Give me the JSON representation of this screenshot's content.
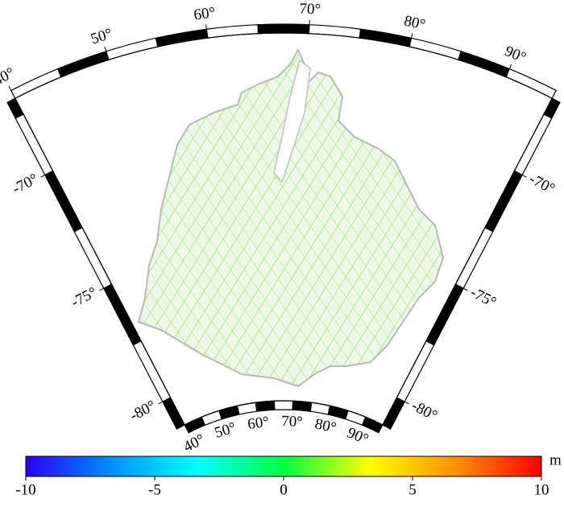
{
  "map": {
    "type": "map",
    "xlim": [
      40,
      95
    ],
    "ylim": [
      -81.2,
      -66.8
    ],
    "xticks": [
      {
        "value": 40,
        "label": "40°"
      },
      {
        "value": 50,
        "label": "50°"
      },
      {
        "value": 60,
        "label": "60°"
      },
      {
        "value": 70,
        "label": "70°"
      },
      {
        "value": 80,
        "label": "80°"
      },
      {
        "value": 90,
        "label": "90°"
      }
    ],
    "yticks": [
      {
        "value": -70,
        "label": "-70°"
      },
      {
        "value": -75,
        "label": "-75°"
      },
      {
        "value": -80,
        "label": "-80°"
      }
    ]
  },
  "colorbar": {
    "clim": [
      -10,
      10
    ],
    "ticks": [
      -10,
      -5,
      0,
      5,
      10
    ],
    "unit": "m",
    "colors": [
      "#2800ff",
      "#0090ff",
      "#00ffff",
      "#00ff40",
      "#ffff00",
      "#ff9000",
      "#ff0000"
    ]
  }
}
